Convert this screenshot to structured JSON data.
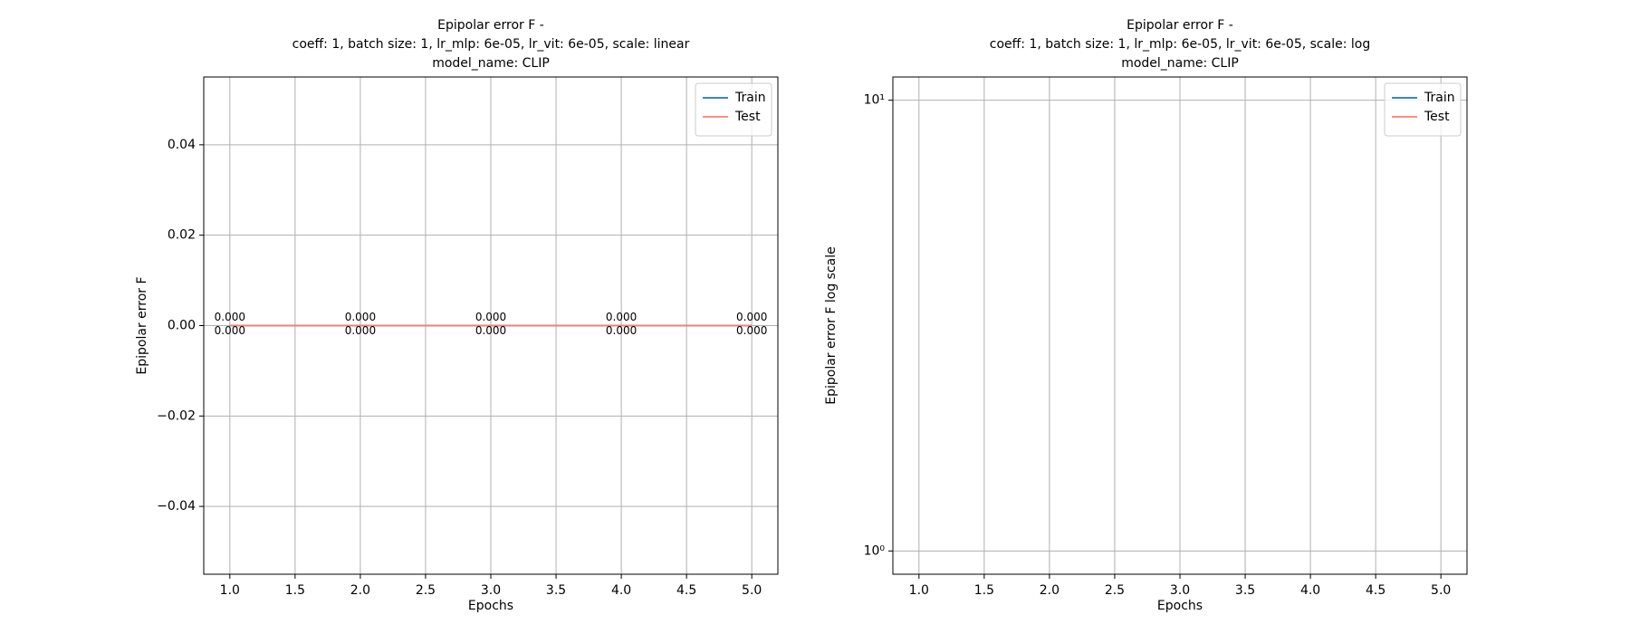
{
  "chart_data": [
    {
      "type": "line",
      "title": [
        "Epipolar error F -",
        "coeff: 1, batch size: 1, lr_mlp: 6e-05, lr_vit: 6e-05, scale: linear",
        "model_name: CLIP"
      ],
      "x_label": "Epochs",
      "y_label": "Epipolar error F",
      "x": [
        1,
        2,
        3,
        4,
        5
      ],
      "xlim": [
        0.8,
        5.2
      ],
      "xticks": [
        {
          "value": 1,
          "label": "1.0"
        },
        {
          "value": 1.5,
          "label": "1.5"
        },
        {
          "value": 2,
          "label": "2.0"
        },
        {
          "value": 2.5,
          "label": "2.5"
        },
        {
          "value": 3,
          "label": "3.0"
        },
        {
          "value": 3.5,
          "label": "3.5"
        },
        {
          "value": 4,
          "label": "4.0"
        },
        {
          "value": 4.5,
          "label": "4.5"
        },
        {
          "value": 5,
          "label": "5.0"
        }
      ],
      "ylim": [
        -0.055,
        0.055
      ],
      "yticks": [
        {
          "value": -0.04,
          "label": "−0.04"
        },
        {
          "value": -0.02,
          "label": "−0.02"
        },
        {
          "value": 0,
          "label": "0.00"
        },
        {
          "value": 0.02,
          "label": "0.02"
        },
        {
          "value": 0.04,
          "label": "0.04"
        }
      ],
      "log": false,
      "grid": true,
      "legend": "upper right",
      "series": [
        {
          "name": "Train",
          "color": "#1f77b4",
          "label_color": "#0000cc",
          "values": [
            0,
            0,
            0,
            0,
            0
          ],
          "value_labels": [
            "0.000",
            "0.000",
            "0.000",
            "0.000",
            "0.000"
          ]
        },
        {
          "name": "Test",
          "color": "#fa8072",
          "label_color": "#e00000",
          "values": [
            0,
            0,
            0,
            0,
            0
          ],
          "value_labels": [
            "0.000",
            "0.000",
            "0.000",
            "0.000",
            "0.000"
          ]
        }
      ]
    },
    {
      "type": "line",
      "title": [
        "Epipolar error F -",
        "coeff: 1, batch size: 1, lr_mlp: 6e-05, lr_vit: 6e-05, scale: log",
        "model_name: CLIP"
      ],
      "x_label": "Epochs",
      "y_label": "Epipolar error F log scale",
      "x": [
        1,
        2,
        3,
        4,
        5
      ],
      "xlim": [
        0.8,
        5.2
      ],
      "xticks": [
        {
          "value": 1,
          "label": "1.0"
        },
        {
          "value": 1.5,
          "label": "1.5"
        },
        {
          "value": 2,
          "label": "2.0"
        },
        {
          "value": 2.5,
          "label": "2.5"
        },
        {
          "value": 3,
          "label": "3.0"
        },
        {
          "value": 3.5,
          "label": "3.5"
        },
        {
          "value": 4,
          "label": "4.0"
        },
        {
          "value": 4.5,
          "label": "4.5"
        },
        {
          "value": 5,
          "label": "5.0"
        }
      ],
      "ylim": [
        0.888,
        11.26
      ],
      "yticks": [
        {
          "value": 1,
          "label": "10⁰"
        },
        {
          "value": 10,
          "label": "10¹"
        }
      ],
      "log": true,
      "grid": true,
      "legend": "upper right",
      "series": [
        {
          "name": "Train",
          "color": "#1f77b4",
          "values": [
            0,
            0,
            0,
            0,
            0
          ]
        },
        {
          "name": "Test",
          "color": "#fa8072",
          "values": [
            0,
            0,
            0,
            0,
            0
          ]
        }
      ]
    }
  ]
}
